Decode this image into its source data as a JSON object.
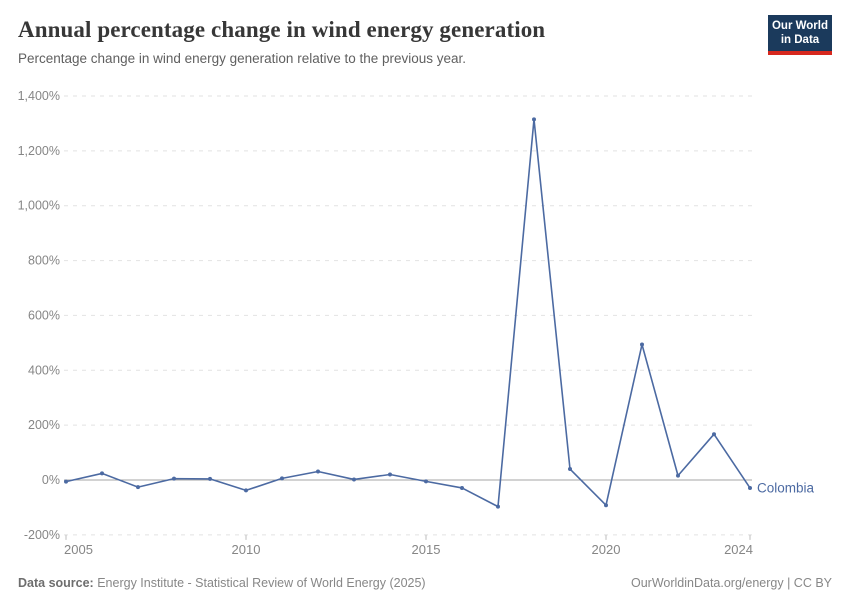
{
  "header": {
    "title": "Annual percentage change in wind energy generation",
    "subtitle": "Percentage change in wind energy generation relative to the previous year."
  },
  "logo": {
    "line1": "Our World",
    "line2": "in Data"
  },
  "footer": {
    "source_label": "Data source:",
    "source_text": " Energy Institute - Statistical Review of World Energy (2025)",
    "credit": "OurWorldinData.org/energy | CC BY"
  },
  "colors": {
    "series": "#4c6aa2",
    "grid": "#e2e2e2",
    "zero_line": "#a6a6a6",
    "tick_text": "#868686",
    "tick_mark": "#bdbdbd",
    "title": "#373737",
    "logo_bg": "#1b3a5c",
    "logo_bar": "#d7281e"
  },
  "chart_data": {
    "type": "line",
    "title": "Annual percentage change in wind energy generation",
    "subtitle": "Percentage change in wind energy generation relative to the previous year.",
    "unit": "%",
    "grid": "horizontal-dashed",
    "legend_position": "end-of-line-label",
    "xlim": [
      2005,
      2024
    ],
    "ylim": [
      -200,
      1400
    ],
    "x": [
      2005,
      2006,
      2007,
      2008,
      2009,
      2010,
      2011,
      2012,
      2013,
      2014,
      2015,
      2016,
      2017,
      2018,
      2019,
      2020,
      2021,
      2022,
      2023,
      2024
    ],
    "series": [
      {
        "name": "Colombia",
        "values": [
          -6,
          24,
          -26,
          5,
          4,
          -38,
          6,
          31,
          2,
          20,
          -5,
          -29,
          -97,
          1315,
          40,
          -92,
          494,
          16,
          167,
          -29
        ]
      }
    ],
    "yticks": [
      -200,
      0,
      200,
      400,
      600,
      800,
      1000,
      1200,
      1400
    ],
    "ytick_labels": [
      "-200%",
      "0%",
      "200%",
      "400%",
      "600%",
      "800%",
      "1,000%",
      "1,200%",
      "1,400%"
    ],
    "xticks": [
      2005,
      2010,
      2015,
      2020,
      2024
    ],
    "xtick_labels": [
      "2005",
      "2010",
      "2015",
      "2020",
      "2024"
    ]
  }
}
